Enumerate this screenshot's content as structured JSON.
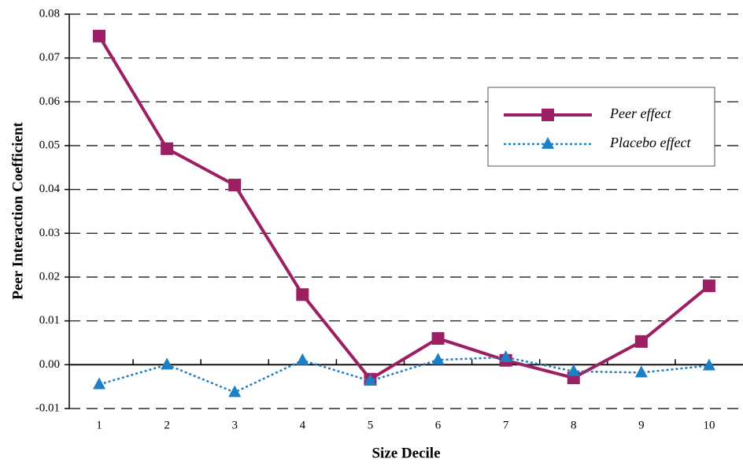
{
  "chart_data": {
    "type": "line",
    "x_label": "Size Decile",
    "y_label": "Peer Interaction Coefficient",
    "categories": [
      "1",
      "2",
      "3",
      "4",
      "5",
      "6",
      "7",
      "8",
      "9",
      "10"
    ],
    "series": [
      {
        "name": "Peer effect",
        "color": "#9b1f62",
        "marker": "square",
        "dash": "solid",
        "values": [
          0.075,
          0.0493,
          0.041,
          0.016,
          -0.0033,
          0.006,
          0.001,
          -0.003,
          0.0053,
          0.018
        ]
      },
      {
        "name": "Placebo effect",
        "color": "#1f7fc4",
        "marker": "triangle",
        "dash": "dotted",
        "values": [
          -0.0045,
          0.0,
          -0.0063,
          0.001,
          -0.0037,
          0.0011,
          0.0017,
          -0.0015,
          -0.0018,
          -0.0002
        ]
      }
    ],
    "ylim": [
      -0.01,
      0.08
    ],
    "yticks": [
      -0.01,
      {
        "value": 0,
        "label": "0.00"
      },
      0.01,
      0.02,
      0.03,
      0.04,
      0.05,
      0.06,
      0.07,
      0.08
    ],
    "grid": true
  }
}
